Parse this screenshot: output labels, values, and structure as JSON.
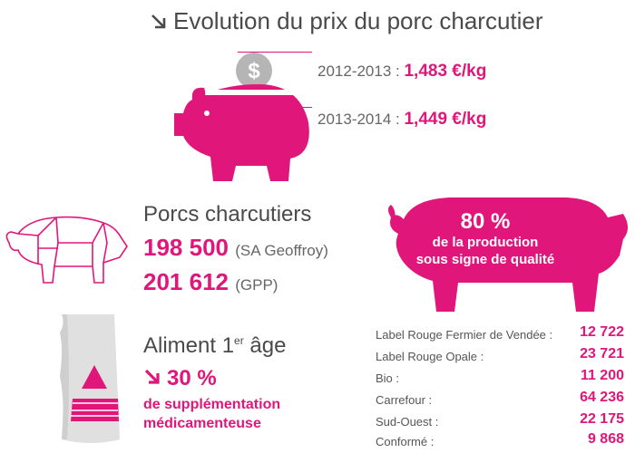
{
  "title": "Evolution du prix du porc charcutier",
  "prices": [
    {
      "period": "2012-2013 :",
      "value": "1,483 €/kg"
    },
    {
      "period": "2013-2014 :",
      "value": "1,449 €/kg"
    }
  ],
  "porcs": {
    "title": "Porcs charcutiers",
    "rows": [
      {
        "value": "198 500",
        "source": "(SA Geoffroy)"
      },
      {
        "value": "201 612",
        "source": "(GPP)"
      }
    ]
  },
  "aliment": {
    "title": "Aliment 1",
    "title_sup": "er",
    "title_end": " âge",
    "percent": "30 %",
    "desc_line1": "de supplémentation",
    "desc_line2": "médicamenteuse"
  },
  "quality": {
    "percent": "80 %",
    "line1": "de la production",
    "line2": "sous signe de qualité"
  },
  "labels": [
    {
      "label": "Label Rouge Fermier de Vendée :",
      "value": "12 722"
    },
    {
      "label": "Label Rouge Opale :",
      "value": "23 721"
    },
    {
      "label": "Bio :",
      "value": "11 200"
    },
    {
      "label": "Carrefour :",
      "value": "64 236"
    },
    {
      "label": "Sud-Ouest :",
      "value": "22 175"
    },
    {
      "label": "Conformé :",
      "value": "9 868"
    }
  ],
  "colors": {
    "accent": "#e0167a",
    "text": "#4a4a4a",
    "coin": "#b5b5b5"
  },
  "icons": [
    "arrow-down-right-icon",
    "piggy-bank-icon",
    "coin-dollar-icon",
    "pig-cuts-outline-icon",
    "feed-bag-icon",
    "pig-silhouette-icon"
  ]
}
